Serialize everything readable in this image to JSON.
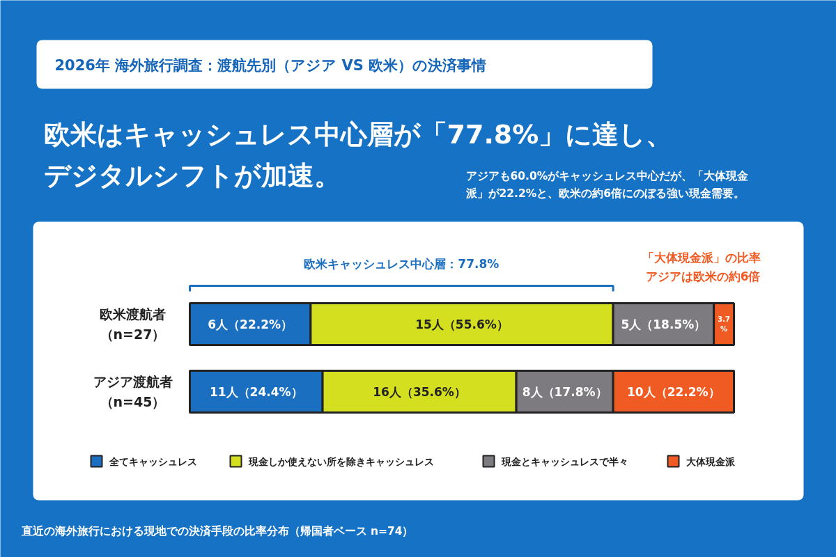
{
  "chart_data": {
    "type": "bar",
    "orientation": "horizontal",
    "stacked": true,
    "title": "2026年 海外旅行調査：渡航先別（アジア VS 欧米）の決済事情",
    "subtitle": "欧米はキャッシュレス中心層が「77.8%」に達し、デジタルシフトが加速。",
    "categories": [
      "欧米渡航者（n=27）",
      "アジア渡航者（n=45）"
    ],
    "xlim": [
      0,
      100
    ],
    "legend": "bottom",
    "series": [
      {
        "name": "全てキャッシュレス",
        "color": "#1a6fc0",
        "values": [
          22.2,
          24.4
        ],
        "value_labels": [
          "6人（22.2%）",
          "11人（24.4%）"
        ]
      },
      {
        "name": "現金しか使えない所を除きキャッシュレス",
        "color": "#d4df1f",
        "values": [
          55.6,
          35.6
        ],
        "value_labels": [
          "15人（55.6%）",
          "16人（35.6%）"
        ]
      },
      {
        "name": "現金とキャッシュレスで半々",
        "color": "#7d7b80",
        "values": [
          18.5,
          17.8
        ],
        "value_labels": [
          "5人（18.5%）",
          "8人（17.8%）"
        ]
      },
      {
        "name": "大体現金派",
        "color": "#f05a23",
        "values": [
          3.7,
          22.2
        ],
        "value_labels": [
          "3.7%",
          "10人（22.2%）"
        ]
      }
    ],
    "annotations": [
      "アジアも60.0%がキャッシュレス中心だが、「大体現金派」が22.2%と、欧米の約6倍にのぼる強い現金需要。",
      "欧米キャッシュレス中心層：77.8%",
      "「大体現金派」の比率アジアは欧米の約6倍",
      "直近の海外旅行における現地での決済手段の比率分布（帰国者ベース n=74）"
    ]
  }
}
